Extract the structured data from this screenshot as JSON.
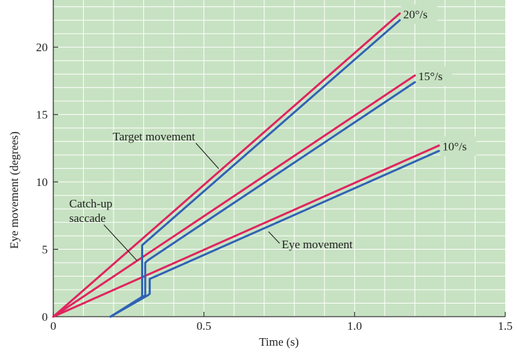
{
  "chart_data": {
    "type": "line",
    "xlabel": "Time (s)",
    "ylabel": "Eye movement (degrees)",
    "xlim": [
      0,
      1.5
    ],
    "ylim": [
      0,
      23.5
    ],
    "x_ticks": [
      "0",
      "0.5",
      "1.0",
      "1.5"
    ],
    "y_ticks": [
      "0",
      "5",
      "10",
      "15",
      "20"
    ],
    "grid": true,
    "colors": {
      "plot_background": "#c7e2c2",
      "grid": "#ffffff",
      "target": "#e0245e",
      "eye": "#2f62b5"
    },
    "series": [
      {
        "role": "target",
        "label": "20°/s",
        "points": [
          [
            0,
            0
          ],
          [
            1.15,
            22.5
          ]
        ]
      },
      {
        "role": "target",
        "label": "15°/s",
        "points": [
          [
            0,
            0
          ],
          [
            1.2,
            17.9
          ]
        ]
      },
      {
        "role": "target",
        "label": "10°/s",
        "points": [
          [
            0,
            0
          ],
          [
            1.28,
            12.7
          ]
        ]
      },
      {
        "role": "eye",
        "points": [
          [
            0.19,
            0
          ],
          [
            0.29,
            1.4
          ],
          [
            0.295,
            1.5
          ],
          [
            0.295,
            5.3
          ],
          [
            0.305,
            5.5
          ],
          [
            1.15,
            22.0
          ]
        ]
      },
      {
        "role": "eye",
        "points": [
          [
            0.19,
            0
          ],
          [
            0.3,
            1.5
          ],
          [
            0.305,
            1.6
          ],
          [
            0.305,
            4.0
          ],
          [
            0.315,
            4.2
          ],
          [
            1.2,
            17.4
          ]
        ]
      },
      {
        "role": "eye",
        "points": [
          [
            0.19,
            0
          ],
          [
            0.315,
            1.6
          ],
          [
            0.32,
            1.7
          ],
          [
            0.32,
            2.8
          ],
          [
            0.33,
            2.9
          ],
          [
            1.28,
            12.3
          ]
        ]
      }
    ],
    "annotations": {
      "target": "Target movement",
      "eye": "Eye movement",
      "saccade_line1": "Catch-up",
      "saccade_line2": "saccade"
    }
  }
}
